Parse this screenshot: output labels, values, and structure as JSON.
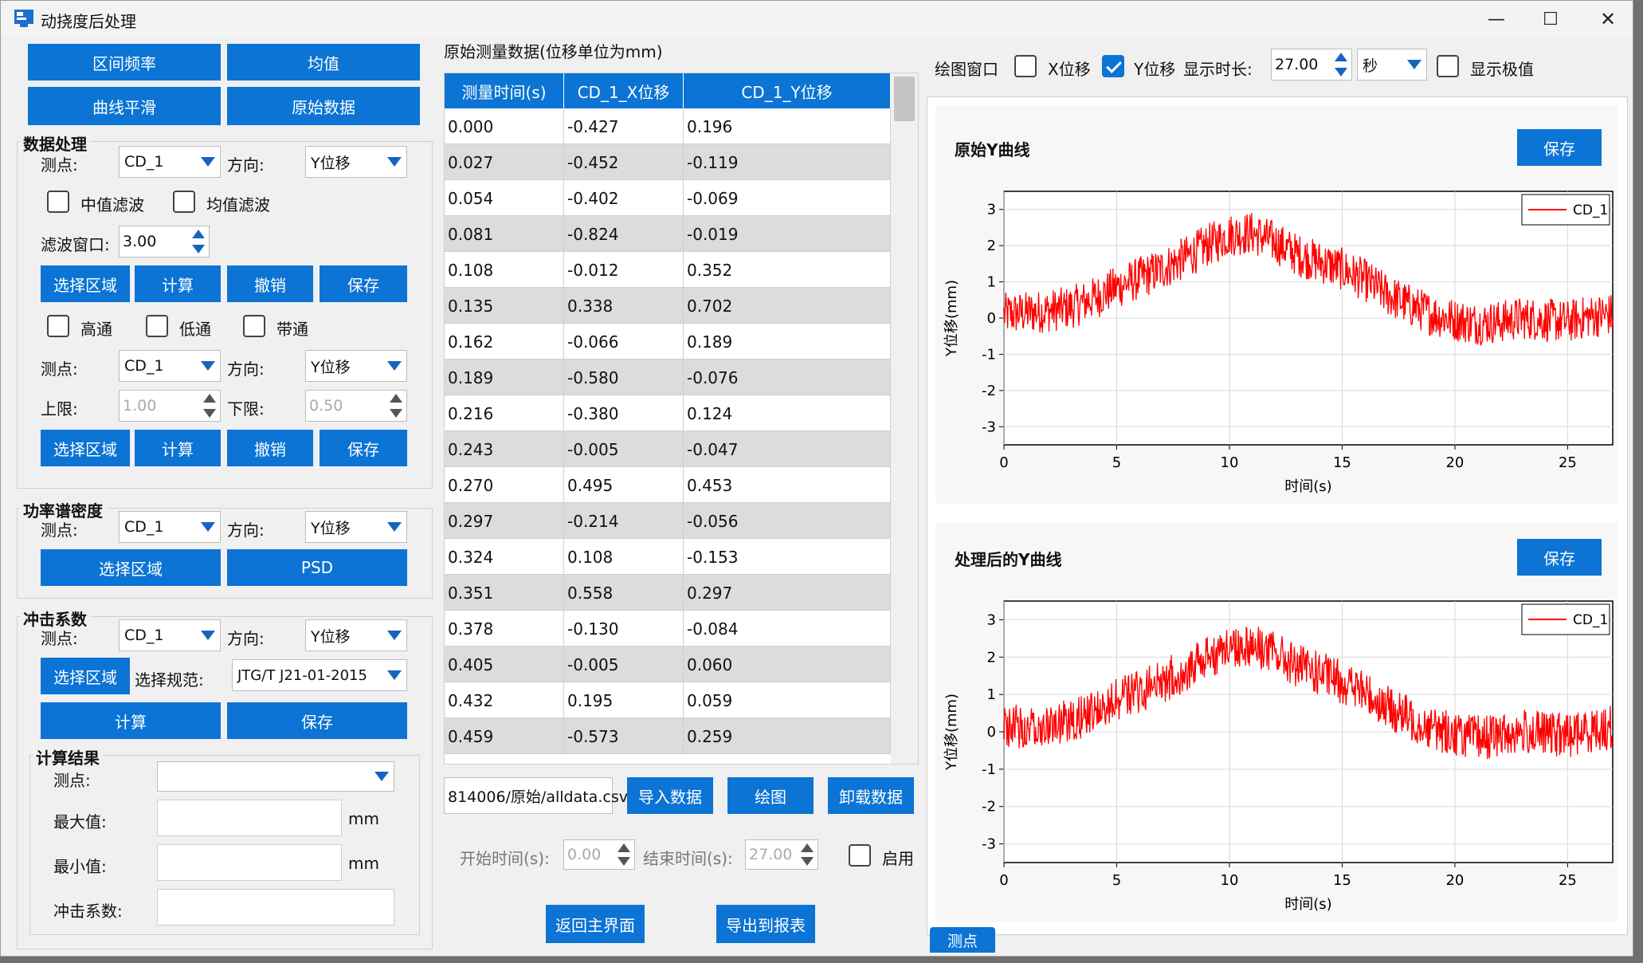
{
  "window": {
    "title": "动挠度后处理",
    "minimize_glyph": "—",
    "maximize_glyph": "☐",
    "close_glyph": "✕"
  },
  "toolbar": {
    "btn_interval_freq": "区间频率",
    "btn_mean": "均值",
    "btn_smooth": "曲线平滑",
    "btn_raw": "原始数据"
  },
  "data_processing": {
    "title": "数据处理",
    "label_point": "测点:",
    "point": "CD_1",
    "label_direction": "方向:",
    "direction": "Y位移",
    "median_filter": "中值滤波",
    "mean_filter": "均值滤波",
    "label_window": "滤波窗口:",
    "window": "3.00",
    "btn_select": "选择区域",
    "btn_calc": "计算",
    "btn_undo": "撤销",
    "btn_save": "保存",
    "highpass": "高通",
    "lowpass": "低通",
    "bandpass": "带通",
    "label_point2": "测点:",
    "point2": "CD_1",
    "label_direction2": "方向:",
    "direction2": "Y位移",
    "label_upper": "上限:",
    "upper": "1.00",
    "label_lower": "下限:",
    "lower": "0.50",
    "btn_select2": "选择区域",
    "btn_calc2": "计算",
    "btn_undo2": "撤销",
    "btn_save2": "保存"
  },
  "psd": {
    "title": "功率谱密度",
    "label_point": "测点:",
    "point": "CD_1",
    "label_direction": "方向:",
    "direction": "Y位移",
    "btn_select": "选择区域",
    "btn_psd": "PSD"
  },
  "impact": {
    "title": "冲击系数",
    "label_point": "测点:",
    "point": "CD_1",
    "label_direction": "方向:",
    "direction": "Y位移",
    "btn_select": "选择区域",
    "label_spec": "选择规范:",
    "spec": "JTG/T J21-01-2015",
    "btn_calc": "计算",
    "btn_save": "保存"
  },
  "results": {
    "title": "计算结果",
    "label_point": "测点:",
    "label_max": "最大值:",
    "label_min": "最小值:",
    "label_coef": "冲击系数:",
    "unit_mm": "mm"
  },
  "table": {
    "title": "原始测量数据(位移单位为mm)",
    "headers": [
      "测量时间(s)",
      "CD_1_X位移",
      "CD_1_Y位移"
    ],
    "rows": [
      [
        "0.000",
        "-0.427",
        "0.196"
      ],
      [
        "0.027",
        "-0.452",
        "-0.119"
      ],
      [
        "0.054",
        "-0.402",
        "-0.069"
      ],
      [
        "0.081",
        "-0.824",
        "-0.019"
      ],
      [
        "0.108",
        "-0.012",
        "0.352"
      ],
      [
        "0.135",
        "0.338",
        "0.702"
      ],
      [
        "0.162",
        "-0.066",
        "0.189"
      ],
      [
        "0.189",
        "-0.580",
        "-0.076"
      ],
      [
        "0.216",
        "-0.380",
        "0.124"
      ],
      [
        "0.243",
        "-0.005",
        "-0.047"
      ],
      [
        "0.270",
        "0.495",
        "0.453"
      ],
      [
        "0.297",
        "-0.214",
        "-0.056"
      ],
      [
        "0.324",
        "0.108",
        "-0.153"
      ],
      [
        "0.351",
        "0.558",
        "0.297"
      ],
      [
        "0.378",
        "-0.130",
        "-0.084"
      ],
      [
        "0.405",
        "-0.005",
        "0.060"
      ],
      [
        "0.432",
        "0.195",
        "0.059"
      ],
      [
        "0.459",
        "-0.573",
        "0.259"
      ]
    ]
  },
  "file": {
    "path": "814006/原始/alldata.csv",
    "btn_import": "导入数据",
    "btn_plot": "绘图",
    "btn_unload": "卸载数据",
    "label_start": "开始时间(s):",
    "start": "0.00",
    "label_end": "结束时间(s):",
    "end": "27.00",
    "enable": "启用",
    "btn_back": "返回主界面",
    "btn_export": "导出到报表"
  },
  "plot_controls": {
    "label_window": "绘图窗口",
    "x_disp": "X位移",
    "y_disp": "Y位移",
    "x_checked": false,
    "y_checked": true,
    "label_duration": "显示时长:",
    "duration": "27.00",
    "unit": "秒",
    "show_extreme": "显示极值",
    "show_extreme_checked": false
  },
  "tab": {
    "label": "测点"
  },
  "colors": {
    "accent": "#0b74d4",
    "series": "#ff0000"
  },
  "chart_data": [
    {
      "type": "line",
      "title": "原始Y曲线",
      "save_label": "保存",
      "xlabel": "时间(s)",
      "ylabel": "Y位移(mm)",
      "xlim": [
        0,
        27
      ],
      "ylim": [
        -3.5,
        3.5
      ],
      "xticks": [
        0,
        5,
        10,
        15,
        20,
        25
      ],
      "yticks": [
        3,
        2,
        1,
        0,
        -1,
        -2,
        -3
      ],
      "grid": true,
      "legend_position": "top-right",
      "series": [
        {
          "name": "CD_1",
          "color": "#ff0000",
          "x": [
            0,
            1,
            2,
            3,
            4,
            5,
            6,
            7,
            8,
            9,
            10,
            11,
            12,
            13,
            14,
            15,
            16,
            17,
            18,
            19,
            20,
            21,
            22,
            23,
            24,
            25,
            26,
            27
          ],
          "y": [
            0.1,
            0.15,
            0.2,
            0.3,
            0.55,
            0.85,
            1.1,
            1.35,
            1.65,
            2.0,
            2.3,
            2.35,
            2.1,
            1.75,
            1.55,
            1.35,
            1.05,
            0.65,
            0.35,
            0.1,
            -0.05,
            -0.15,
            -0.1,
            0.0,
            -0.05,
            -0.1,
            0.05,
            0.1
          ],
          "noise_amplitude": 0.6
        }
      ]
    },
    {
      "type": "line",
      "title": "处理后的Y曲线",
      "save_label": "保存",
      "xlabel": "时间(s)",
      "ylabel": "Y位移(mm)",
      "xlim": [
        0,
        27
      ],
      "ylim": [
        -3.5,
        3.5
      ],
      "xticks": [
        0,
        5,
        10,
        15,
        20,
        25
      ],
      "yticks": [
        3,
        2,
        1,
        0,
        -1,
        -2,
        -3
      ],
      "grid": true,
      "legend_position": "top-right",
      "series": [
        {
          "name": "CD_1",
          "color": "#ff0000",
          "x": [
            0,
            1,
            2,
            3,
            4,
            5,
            6,
            7,
            8,
            9,
            10,
            11,
            12,
            13,
            14,
            15,
            16,
            17,
            18,
            19,
            20,
            21,
            22,
            23,
            24,
            25,
            26,
            27
          ],
          "y": [
            0.1,
            0.15,
            0.2,
            0.3,
            0.55,
            0.85,
            1.1,
            1.35,
            1.65,
            2.0,
            2.3,
            2.35,
            2.1,
            1.75,
            1.55,
            1.35,
            1.05,
            0.65,
            0.35,
            0.1,
            -0.05,
            -0.15,
            -0.1,
            0.0,
            -0.05,
            -0.1,
            0.05,
            0.1
          ],
          "noise_amplitude": 0.6
        }
      ]
    }
  ]
}
